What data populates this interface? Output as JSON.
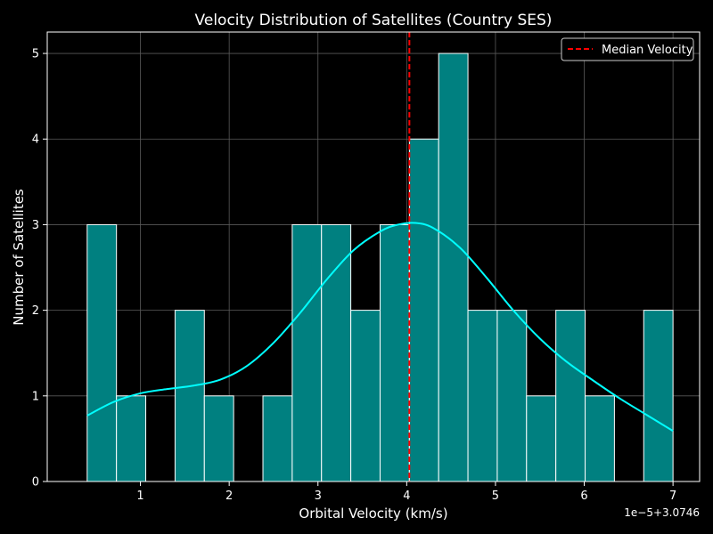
{
  "chart_data": {
    "type": "bar",
    "title": "Velocity Distribution of Satellites (Country SES)",
    "xlabel": "Orbital Velocity (km/s)",
    "ylabel": "Number of Satellites",
    "offset_label": "1e−5+3.0746",
    "x_ticks": [
      "1",
      "2",
      "3",
      "4",
      "5",
      "6",
      "7"
    ],
    "y_ticks": [
      "0",
      "1",
      "2",
      "3",
      "4",
      "5"
    ],
    "xlim": [
      -0.05,
      7.3
    ],
    "ylim": [
      0,
      5.25
    ],
    "grid": true,
    "legend": {
      "position": "top-right",
      "entries": [
        "Median Velocity"
      ]
    },
    "bins": [
      {
        "x0": 0.4,
        "x1": 0.73,
        "count": 3
      },
      {
        "x0": 0.73,
        "x1": 1.06,
        "count": 1
      },
      {
        "x0": 1.06,
        "x1": 1.39,
        "count": 0
      },
      {
        "x0": 1.39,
        "x1": 1.72,
        "count": 2
      },
      {
        "x0": 1.72,
        "x1": 2.05,
        "count": 1
      },
      {
        "x0": 2.05,
        "x1": 2.38,
        "count": 0
      },
      {
        "x0": 2.38,
        "x1": 2.71,
        "count": 1
      },
      {
        "x0": 2.71,
        "x1": 3.04,
        "count": 3
      },
      {
        "x0": 3.04,
        "x1": 3.37,
        "count": 3
      },
      {
        "x0": 3.37,
        "x1": 3.7,
        "count": 2
      },
      {
        "x0": 3.7,
        "x1": 4.03,
        "count": 3
      },
      {
        "x0": 4.03,
        "x1": 4.36,
        "count": 4
      },
      {
        "x0": 4.36,
        "x1": 4.69,
        "count": 5
      },
      {
        "x0": 4.69,
        "x1": 5.02,
        "count": 2
      },
      {
        "x0": 5.02,
        "x1": 5.35,
        "count": 2
      },
      {
        "x0": 5.35,
        "x1": 5.68,
        "count": 1
      },
      {
        "x0": 5.68,
        "x1": 6.01,
        "count": 2
      },
      {
        "x0": 6.01,
        "x1": 6.34,
        "count": 1
      },
      {
        "x0": 6.34,
        "x1": 6.67,
        "count": 0
      },
      {
        "x0": 6.67,
        "x1": 7.0,
        "count": 2
      }
    ],
    "kde": {
      "x": [
        0.4,
        0.7,
        1.0,
        1.3,
        1.6,
        1.9,
        2.2,
        2.5,
        2.8,
        3.1,
        3.4,
        3.7,
        3.9,
        4.1,
        4.3,
        4.6,
        4.9,
        5.2,
        5.5,
        5.8,
        6.1,
        6.4,
        6.7,
        7.0
      ],
      "y": [
        0.77,
        0.93,
        1.03,
        1.08,
        1.12,
        1.19,
        1.35,
        1.62,
        1.97,
        2.36,
        2.7,
        2.92,
        3.0,
        3.02,
        2.96,
        2.73,
        2.38,
        2.0,
        1.67,
        1.4,
        1.18,
        0.97,
        0.78,
        0.59
      ]
    },
    "median": 4.03,
    "colors": {
      "background": "#000000",
      "bar_fill": "#008080",
      "bar_edge": "#ffffff",
      "kde_line": "#00ffff",
      "median_line": "#ff0000",
      "grid": "#5a5a5a",
      "text": "#ffffff"
    }
  }
}
